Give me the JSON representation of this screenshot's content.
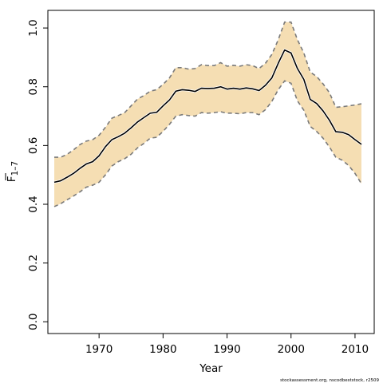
{
  "chart_data": {
    "type": "line",
    "xlabel": "Year",
    "ylabel": "F",
    "ylabel_subscript": "1–7",
    "xlim": [
      1962,
      2013
    ],
    "ylim": [
      -0.04,
      1.06
    ],
    "xticks": [
      1970,
      1980,
      1990,
      2000,
      2010
    ],
    "xtick_labels": [
      "1970",
      "1980",
      "1990",
      "2000",
      "2010"
    ],
    "yticks": [
      0.0,
      0.2,
      0.4,
      0.6,
      0.8,
      1.0
    ],
    "ytick_labels": [
      "0.0",
      "0.2",
      "0.4",
      "0.6",
      "0.8",
      "1.0"
    ],
    "grid": false,
    "band_color": "#f5deb3",
    "bound_color": "#7a7a7a",
    "line_color": "#000000",
    "x": [
      1963,
      1964,
      1965,
      1966,
      1967,
      1968,
      1969,
      1970,
      1971,
      1972,
      1973,
      1974,
      1975,
      1976,
      1977,
      1978,
      1979,
      1980,
      1981,
      1982,
      1983,
      1984,
      1985,
      1986,
      1987,
      1988,
      1989,
      1990,
      1991,
      1992,
      1993,
      1994,
      1995,
      1996,
      1997,
      1998,
      1999,
      2000,
      2001,
      2002,
      2003,
      2004,
      2005,
      2006,
      2007,
      2008,
      2009,
      2010,
      2011
    ],
    "series": [
      {
        "role": "estimate",
        "values": [
          0.475,
          0.48,
          0.492,
          0.505,
          0.522,
          0.537,
          0.545,
          0.565,
          0.596,
          0.62,
          0.63,
          0.642,
          0.66,
          0.68,
          0.695,
          0.71,
          0.713,
          0.735,
          0.755,
          0.785,
          0.79,
          0.788,
          0.784,
          0.795,
          0.794,
          0.795,
          0.8,
          0.792,
          0.795,
          0.792,
          0.796,
          0.793,
          0.787,
          0.805,
          0.83,
          0.88,
          0.925,
          0.915,
          0.862,
          0.825,
          0.757,
          0.743,
          0.718,
          0.686,
          0.647,
          0.645,
          0.637,
          0.62,
          0.604
        ]
      },
      {
        "role": "upper",
        "values": [
          0.56,
          0.56,
          0.57,
          0.585,
          0.603,
          0.615,
          0.62,
          0.635,
          0.662,
          0.693,
          0.702,
          0.712,
          0.735,
          0.758,
          0.77,
          0.785,
          0.79,
          0.808,
          0.83,
          0.865,
          0.865,
          0.86,
          0.862,
          0.875,
          0.872,
          0.872,
          0.882,
          0.87,
          0.873,
          0.87,
          0.875,
          0.872,
          0.862,
          0.88,
          0.91,
          0.96,
          1.02,
          1.02,
          0.96,
          0.915,
          0.85,
          0.835,
          0.81,
          0.78,
          0.73,
          0.732,
          0.735,
          0.738,
          0.742
        ]
      },
      {
        "role": "lower",
        "values": [
          0.392,
          0.402,
          0.415,
          0.428,
          0.442,
          0.458,
          0.465,
          0.475,
          0.5,
          0.53,
          0.545,
          0.555,
          0.57,
          0.592,
          0.607,
          0.625,
          0.628,
          0.648,
          0.672,
          0.7,
          0.705,
          0.702,
          0.7,
          0.712,
          0.71,
          0.712,
          0.715,
          0.71,
          0.71,
          0.708,
          0.712,
          0.712,
          0.705,
          0.722,
          0.75,
          0.79,
          0.82,
          0.812,
          0.752,
          0.72,
          0.665,
          0.648,
          0.625,
          0.595,
          0.56,
          0.55,
          0.532,
          0.505,
          0.47
        ]
      }
    ]
  },
  "footer": {
    "credit": "stockassessment.org, nscodbeststock, r2509"
  }
}
